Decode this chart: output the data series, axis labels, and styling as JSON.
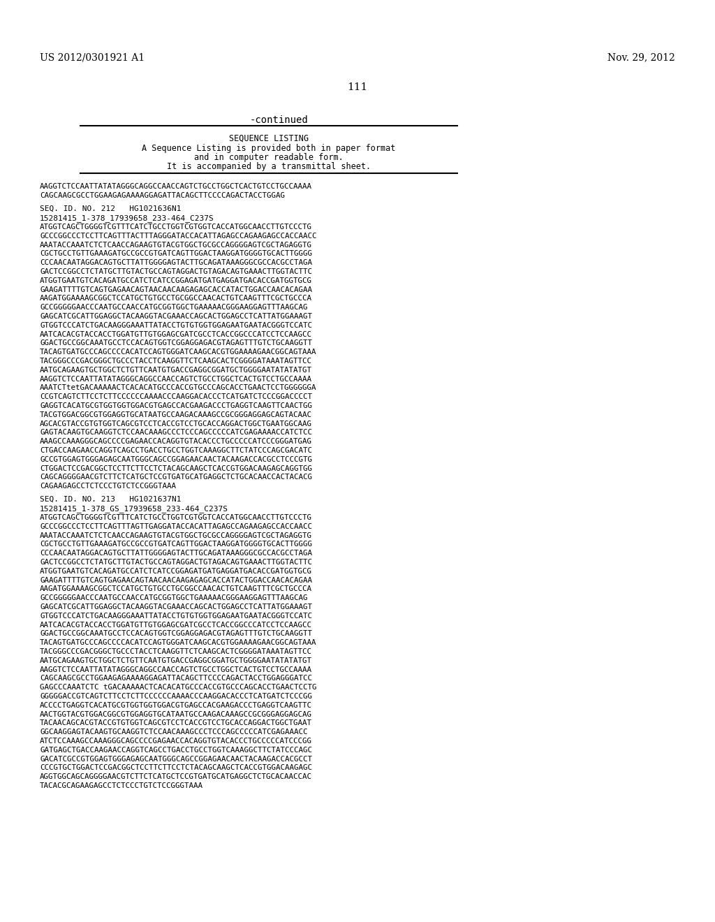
{
  "background_color": "#ffffff",
  "header_left": "US 2012/0301921 A1",
  "header_right": "Nov. 29, 2012",
  "page_number": "111",
  "continued_text": "-continued",
  "box_text_lines": [
    "SEQUENCE LISTING",
    "A Sequence Listing is provided both in paper format",
    "and in computer readable form.",
    "It is accompanied by a transmittal sheet."
  ],
  "seq_intro_lines": [
    "AAGGTCTCCAATTATATAGGGCAGGCCAACCAGTCTGCCTGGCTCACTGTCCTGCCAAAA",
    "CAGCAAGCGCCTGGAAGAGAAAAGGAGATTACAGCTTCCCCAGACTACCTGGAG"
  ],
  "seq212_header": "SEQ. ID. NO. 212   HG1021636N1",
  "seq212_subheader": "15281415_1-378_17939658_233-464_C237S",
  "seq212_lines": [
    "ATGGTCAGCTGGGGTCGTTTCATCTGCCTGGTCGTGGTCACCATGGCAACCTTGTCCCTG",
    "GCCCGGCCCTCCTTCAGTTTACTTTAGGGATACCACATTAGAGCCAGAAGAGCCACCAACC",
    "AAATACCAAATCTCTCAACCAGAAGTGTACGTGGCTGCGCCAGGGGAGTCGCTAGAGGTG",
    "CGCTGCCTGTTGAAAGATGCCGCCGTGATCAGTTGGACTAAGGATGGGGTGCACTTGGGG",
    "CCCAACAATAGGACAGTGCTTATTGGGGAGTACTTGCAGATAAAGGGCGCCACGCCTAGA",
    "GACTCCGGCCTCTATGCTTGTACTGCCAGTAGGACTGTAGACAGTGAAACTTGGTACTTC",
    "ATGGTGAATGTCACAGATGCCATCTCATCCGGAGATGATGAGGATGACACCGATGGTGCG",
    "GAAGATTTTGTCAGTGAGAACAGTAACAACAAGAGAGCACCATACTGGACCAACACAGAA",
    "AAGATGGAAAAGCGGCTCCATGCTGTGCCTGCGGCCAACACTGTCAAGTTTCGCTGCCCA",
    "GCCGGGGGAACCCAATGCCAACCATGCGGTGGCTGAAAAACGGGAAGGAGTTTAAGCAG",
    "GAGCATCGCATTGGAGGCTACAAGGTACGAAACCAGCACTGGAGCCTCATTATGGAAAGT",
    "GTGGTCCCATCTGACAAGGGAAATTATACCTGTGTGGTGGAGAATGAATACGGGTCCATC",
    "AATCACACGTACCACCTGGATGTTGTGGAGCGATCGCCTCACCGGCCCATCCTCCAAGCC",
    "GGACTGCCGGCAAATGCCTCCACAGTGGTCGGAGGAGACGTAGAGTTTGTCTGCAAGGTT",
    "TACAGTGATGCCCAGCCCCACATCCAGTGGGATCAAGCACGTGGAAAAGAACGGCAGTAAA",
    "TACGGGCCCGACGGGCTGCCCTACCTCAAGGTTCTCAAGCACTCGGGGATAAATAGTTCC",
    "AATGCAGAAGTGCTGGCTCTGTTCAATGTGACCGAGGCGGATGCTGGGGAATATATATGT",
    "AAGGTCTCCAATTATATAGGGCAGGCCAACCAGTCTGCCTGGCTCACTGTCCTGCCAAAA",
    "AAATCTtetGACAAAAACTCACACATGCCCACCGTGCCCAGCACCTGAACTCCTGGGGGGA",
    "CCGTCAGTCTTCCTCTTCCCCCCAAAACCCAAGGACACCCTCATGATCTCCCGGACCCCT",
    "GAGGTCACATGCGTGGTGGTGGACGTGAGCCACGAAGACCCTGAGGTCAAGTTCAACTGG",
    "TACGTGGACGGCGTGGAGGTGCATAATGCCAAGACAAAGCCGCGGGAGGAGCAGTACAAC",
    "AGCACGTACCGTGTGGTCAGCGTCCTCACCGTCCTGCACCAGGACTGGCTGAATGGCAAG",
    "GAGTACAAGTGCAAGGTCTCCAACAAAGCCCTCCCAGCCCCCATCGAGAAAACCATCTCC",
    "AAAGCCAAAGGGCAGCCCCGAGAACCACAGGTGTACACCCTGCCCCCATCCCGGGATGAG",
    "CTGACCAAGAACCAGGTCAGCCTGACCTGCCTGGTCAAAGGCTTCTATCCCAGCGACATC",
    "GCCGTGGAGTGGGAGAGCAATGGGCAGCCGGAGAACAACTACAAGACCACGCCTCCCGTG",
    "CTGGACTCCGACGGCTCCTTCTTCCTCTACAGCAAGCTCACCGTGGACAAGAGCAGGTGG",
    "CAGCAGGGGAACGTCTTCTCATGCTCCGTGATGCATGAGGCTCTGCACAACCACTACACG",
    "CAGAAGAGCCTCTCCCTGTCTCCGGGTAAA"
  ],
  "seq213_header": "SEQ. ID. NO. 213   HG1021637N1",
  "seq213_subheader": "15281415_1-378_GS_17939658_233-464_C237S",
  "seq213_lines": [
    "ATGGTCAGCTGGGGTCGTTTCATCTGCCTGGTCGTGGTCACCATGGCAACCTTGTCCCTG",
    "GCCCGGCCCTCCTTCAGTTTAGTTGAGGATACCACATTAGAGCCAGAAGAGCCACCAACC",
    "AAATACCAAATCTCTCAACCAGAAGTGTACGTGGCTGCGCCAGGGGAGTCGCTAGAGGTG",
    "CGCTGCCTGTTGAAAGATGCCGCCGTGATCAGTTGGACTAAGGATGGGGTGCACTTGGGG",
    "CCCAACAATAGGACAGTGCTTATTGGGGAGTACTTGCAGATAAAGGGCGCCACGCCTAGA",
    "GACTCCGGCCTCTATGCTTGTACTGCCAGTAGGACTGTAGACAGTGAAACTTGGTACTTC",
    "ATGGTGAATGTCACAGATGCCATCTCATCCGGAGATGATGAGGATGACACCGATGGTGCG",
    "GAAGATTTTGTCAGTGAGAACAGTAACAACAAGAGAGCACCATACTGGACCAACACAGAA",
    "AAGATGGAAAAGCGGCTCCATGCTGTGCCTGCGGCCAACACTGTCAAGTTTCGCTGCCCA",
    "GCCGGGGGAACCCAATGCCAACCATGCGGTGGCTGAAAAACGGGAAGGAGTTTAAGCAG",
    "GAGCATCGCATTGGAGGCTACAAGGTACGAAACCAGCACTGGAGCCTCATTATGGAAAGT",
    "GTGGTCCCATCTGACAAGGGAAATTATACCTGTGTGGTGGAGAATGAATACGGGTCCATC",
    "AATCACACGTACCACCTGGATGTTGTGGAGCGATCGCCTCACCGGCCCATCCTCCAAGCC",
    "GGACTGCCGGCAAATGCCTCCACAGTGGTCGGAGGAGACGTAGAGTTTGTCTGCAAGGTT",
    "TACAGTGATGCCCAGCCCCACATCCAGTGGGATCAAGCACGTGGAAAAGAACGGCAGTAAA",
    "TACGGGCCCGACGGGCTGCCCTACCTCAAGGTTCTCAAGCACTCGGGGATAAATAGTTCC",
    "AATGCAGAAGTGCTGGCTCTGTTCAATGTGACCGAGGCGGATGCTGGGGAATATATATGT",
    "AAGGTCTCCAATTATATAGGGCAGGCCAACCAGTCTGCCTGGCTCACTGTCCTGCCAAAA",
    "CAGCAAGCGCCTGGAAGAGAAAAGGAGATTACAGCTTCCCCAGACTACCTGGAGGGATCC",
    "GAGCCCAAATCTC tGACAAAAACTCACACATGCCCACCGTGCCCAGCACCTGAACTCCTG",
    "GGGGGACCGTCAGTCTTCCTCTTCCCCCCAAAACCCAAGGACACCCTCATGATCTCCCGG",
    "ACCCCTGAGGTCACATGCGTGGTGGTGGACGTGAGCCACGAAGACCCTGAGGTCAAGTTC",
    "AACTGGTACGTGGACGGCGTGGAGGTGCATAATGCCAAGACAAAGCCGCGGGAGGAGCAG",
    "TACAACAGCACGTACCGTGTGGTCAGCGTCCTCACCGTCCTGCACCAGGACTGGCTGAAT",
    "GGCAAGGAGTACAAGTGCAAGGTCTCCAACAAAGCCCTCCCAGCCCCCATCGAGAAACC",
    "ATCTCCAAAGCCAAAGGGCAGCCCCGAGAACCACAGGTGTACACCCTGCCCCCATCCCGG",
    "GATGAGCTGACCAAGAACCAGGTCAGCCTGACCTGCCTGGTCAAAGGCTTCTATCCCAGC",
    "GACATCGCCGTGGAGTGGGAGAGCAATGGGCAGCCGGAGAACAACTACAAGACCACGCCT",
    "CCCGTGCTGGACTCCGACGGCTCCTTCTTCCTCTACAGCAAGCTCACCGTGGACAAGAGC",
    "AGGTGGCAGCAGGGGAACGTCTTCTCATGCTCCGTGATGCATGAGGCTCTGCACAACCAC",
    "TACACGCAGAAGAGCCTCTCCCTGTCTCCGGGTAAA"
  ]
}
